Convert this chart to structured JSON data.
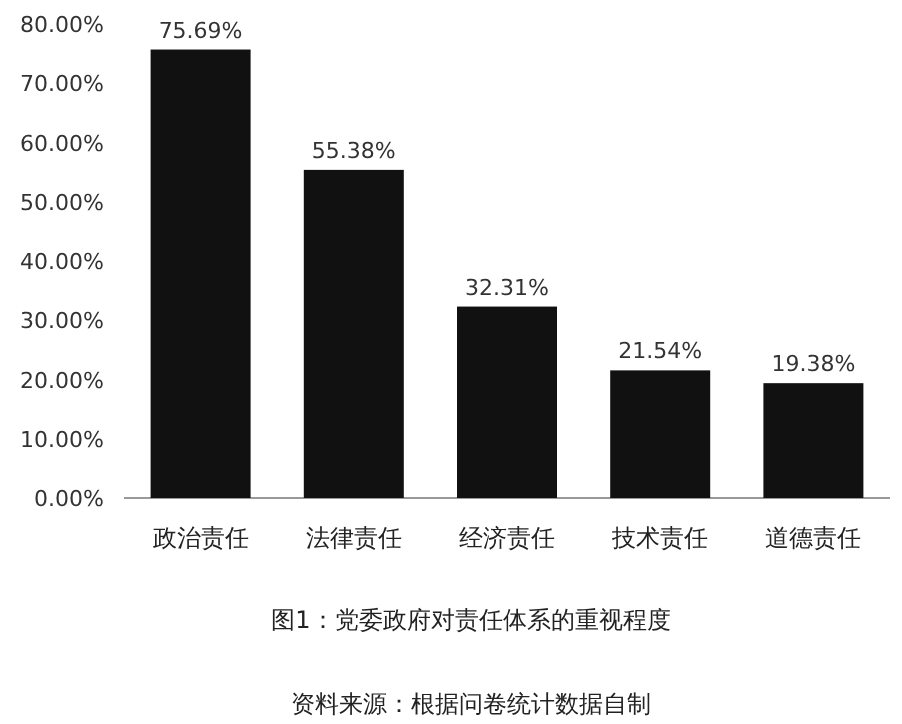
{
  "chart_data": {
    "type": "bar",
    "title": "图1：党委政府对责任体系的重视程度",
    "annotations": [
      "资料来源：根据问卷统计数据自制"
    ],
    "categories": [
      "政治责任",
      "法律责任",
      "经济责任",
      "技术责任",
      "道德责任"
    ],
    "values": [
      75.69,
      55.38,
      32.31,
      21.54,
      19.38
    ],
    "value_labels": [
      "75.69%",
      "55.38%",
      "32.31%",
      "21.54%",
      "19.38%"
    ],
    "color": "#111111",
    "ylim": [
      0,
      80
    ],
    "yticks": [
      {
        "value": 0,
        "label": "0.00%"
      },
      {
        "value": 10,
        "label": "10.00%"
      },
      {
        "value": 20,
        "label": "20.00%"
      },
      {
        "value": 30,
        "label": "30.00%"
      },
      {
        "value": 40,
        "label": "40.00%"
      },
      {
        "value": 50,
        "label": "50.00%"
      },
      {
        "value": 60,
        "label": "60.00%"
      },
      {
        "value": 70,
        "label": "70.00%"
      },
      {
        "value": 80,
        "label": "80.00%"
      }
    ]
  }
}
